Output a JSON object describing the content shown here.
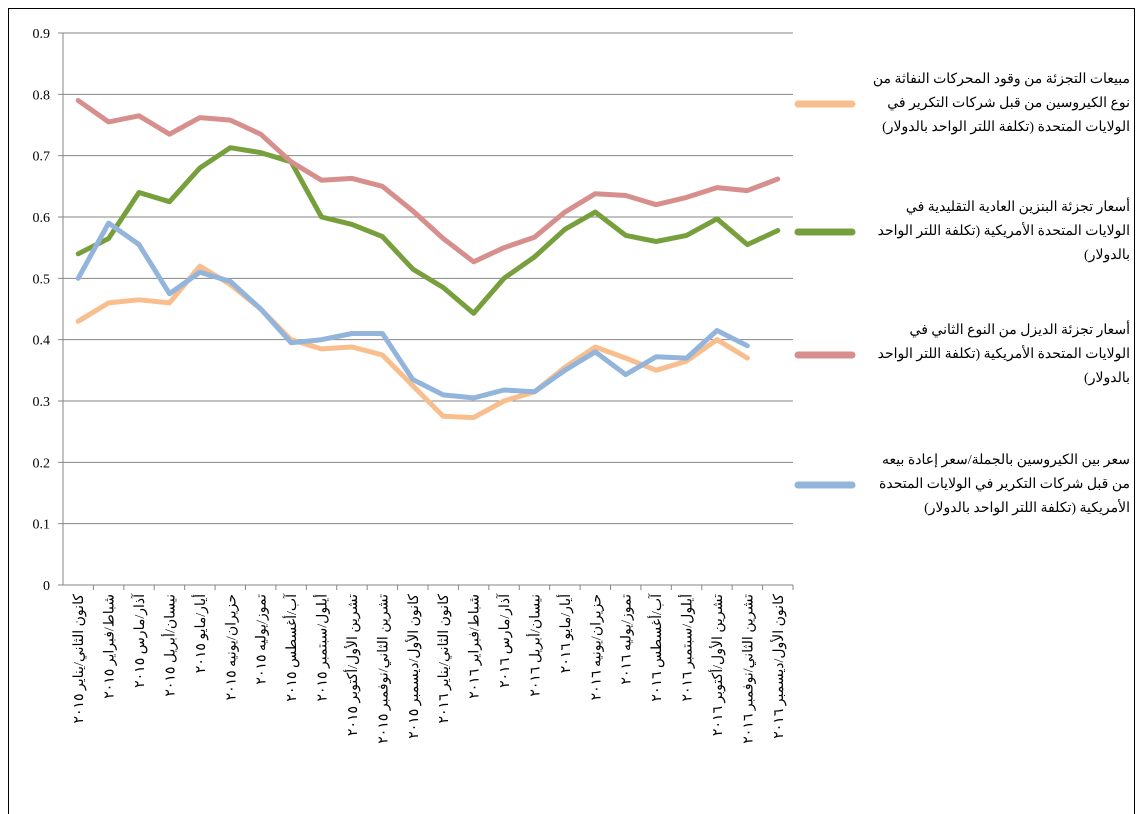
{
  "chart_data": {
    "type": "line",
    "categories": [
      "كانون الثاني/يناير ٢٠١٥",
      "شباط/فبراير ٢٠١٥",
      "آذار/مارس ٢٠١٥",
      "نيسان/أبريل ٢٠١٥",
      "أيار/مايو ٢٠١٥",
      "حزيران/يونيه ٢٠١٥",
      "تموز/يوليه ٢٠١٥",
      "آب/أغسطس ٢٠١٥",
      "أيلول/سبتمبر ٢٠١٥",
      "تشرين الأول/أكتوبر ٢٠١٥",
      "تشرين الثاني/نوفمبر ٢٠١٥",
      "كانون الأول/ديسمبر ٢٠١٥",
      "كانون الثاني/يناير ٢٠١٦",
      "شباط/فبراير ٢٠١٦",
      "آذار/مارس ٢٠١٦",
      "نيسان/أبريل ٢٠١٦",
      "أيار/مايو ٢٠١٦",
      "حزيران/يونيه ٢٠١٦",
      "تموز/يوليه ٢٠١٦",
      "آب/أغسطس ٢٠١٦",
      "أيلول/سبتمبر ٢٠١٦",
      "تشرين الأول/أكتوبر ٢٠١٦",
      "تشرين الثاني/نوفمبر ٢٠١٦",
      "كانون الأول/ديسمبر ٢٠١٦"
    ],
    "series": [
      {
        "name": "مبيعات التجزئة من وقود المحركات النفاثة من نوع الكيروسين من قبل شركات التكرير في الولايات المتحدة (تكلفة اللتر الواحد بالدولار)",
        "color": "#f9be8e",
        "values": [
          0.43,
          0.46,
          0.465,
          0.46,
          0.52,
          0.49,
          0.45,
          0.4,
          0.385,
          0.388,
          0.375,
          0.325,
          0.275,
          0.273,
          0.3,
          0.315,
          0.355,
          0.388,
          0.37,
          0.35,
          0.365,
          0.4,
          0.37,
          null
        ]
      },
      {
        "name": "أسعار تجزئة البنزين العادية التقليدية في الولايات المتحدة الأمريكية (تكلفة اللتر الواحد بالدولار)",
        "color": "#77a03d",
        "values": [
          0.54,
          0.565,
          0.64,
          0.625,
          0.68,
          0.713,
          0.705,
          0.69,
          0.6,
          0.588,
          0.568,
          0.515,
          0.485,
          0.443,
          0.5,
          0.535,
          0.58,
          0.608,
          0.57,
          0.56,
          0.57,
          0.597,
          0.555,
          0.578
        ]
      },
      {
        "name": "أسعار تجزئة الديزل من النوع الثاني في الولايات المتحدة الأمريكية (تكلفة اللتر الواحد بالدولار)",
        "color": "#d68f8d",
        "values": [
          0.79,
          0.755,
          0.765,
          0.735,
          0.762,
          0.758,
          0.735,
          0.69,
          0.66,
          0.663,
          0.65,
          0.61,
          0.565,
          0.527,
          0.55,
          0.567,
          0.608,
          0.638,
          0.635,
          0.62,
          0.632,
          0.648,
          0.643,
          0.662
        ]
      },
      {
        "name": "سعر بين الكيروسين بالجملة/سعر إعادة بيعه من قبل شركات التكرير في الولايات المتحدة الأمريكية (تكلفة اللتر الواحد بالدولار)",
        "color": "#93b4db",
        "values": [
          0.5,
          0.59,
          0.555,
          0.475,
          0.51,
          0.495,
          0.45,
          0.395,
          0.4,
          0.41,
          0.41,
          0.335,
          0.31,
          0.305,
          0.318,
          0.315,
          0.35,
          0.38,
          0.343,
          0.372,
          0.37,
          0.415,
          0.39,
          null
        ]
      }
    ],
    "ylim": [
      0,
      0.9
    ],
    "yticks": [
      0,
      0.1,
      0.2,
      0.3,
      0.4,
      0.5,
      0.6,
      0.7,
      0.8,
      0.9
    ],
    "grid": true,
    "legend": "right"
  }
}
